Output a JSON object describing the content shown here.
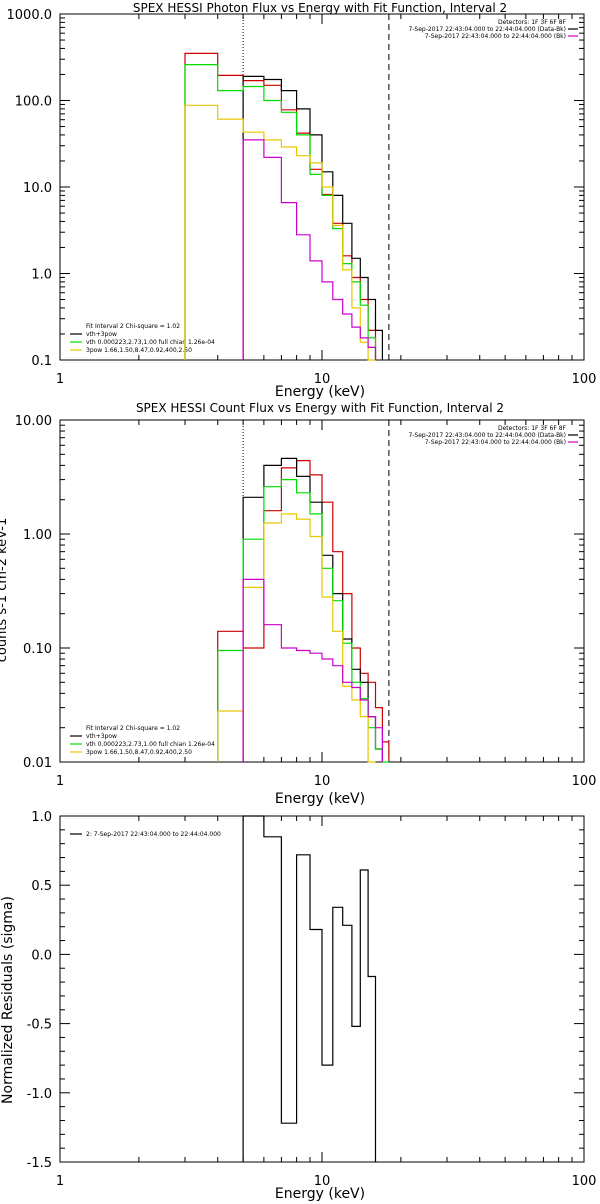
{
  "colors": {
    "total": "#000000",
    "vth": "#00dd00",
    "pow": "#e8c800",
    "data": "#cc0000",
    "bk": "#cc00cc",
    "axis": "#000000",
    "background": "#ffffff"
  },
  "chart_data": [
    {
      "type": "line",
      "title": "SPEX HESSI Photon Flux vs Energy with Fit Function, Interval 2",
      "xlabel": "Energy (keV)",
      "ylabel": "",
      "xscale": "log",
      "yscale": "log",
      "xlim": [
        1,
        100
      ],
      "ylim": [
        0.1,
        1000
      ],
      "x_tick_labels": [
        "1",
        "10",
        "100"
      ],
      "y_tick_labels": [
        "0.1",
        "1.0",
        "10.0",
        "100.0",
        "1000.0"
      ],
      "y_tick_values": [
        0.1,
        1,
        10,
        100,
        1000
      ],
      "energy_edges": [
        3.0,
        4.0,
        5.0,
        6.0,
        7.0,
        8.0,
        9.0,
        10.0,
        11.0,
        12.0,
        13.0,
        14.0,
        15.0,
        16.0,
        17.0,
        18.0
      ],
      "vlines": [
        {
          "x": 5.0,
          "style": "dotted"
        },
        {
          "x": 18.0,
          "style": "dashed"
        }
      ],
      "series": [
        {
          "key": "data",
          "colorKey": "data",
          "values": [
            350,
            195,
            170,
            150,
            78,
            42,
            16,
            8.2,
            3.8,
            1.6,
            0.9,
            0.5,
            0.22
          ]
        },
        {
          "key": "total",
          "colorKey": "total",
          "values": [
            null,
            null,
            190,
            175,
            130,
            80,
            40,
            15,
            8,
            3.8,
            1.5,
            0.9,
            0.5,
            0.22
          ]
        },
        {
          "key": "vth",
          "colorKey": "vth",
          "values": [
            260,
            130,
            145,
            100,
            73,
            40,
            14,
            8,
            3.3,
            1.3,
            0.8,
            0.43,
            0.18
          ]
        },
        {
          "key": "pow",
          "colorKey": "pow",
          "values": [
            88,
            61,
            43,
            35,
            29,
            23,
            19,
            10,
            3.6,
            1.1,
            0.4,
            0.16,
            0.1
          ]
        },
        {
          "key": "bk",
          "colorKey": "bk",
          "start_edge": 2,
          "values": [
            35,
            22,
            6.6,
            2.8,
            1.4,
            0.8,
            0.5,
            0.34,
            0.24,
            0.18,
            0.14
          ]
        }
      ],
      "legend": {
        "placement": "bottom-left",
        "entries": [
          {
            "text": "Fit Interval 2   Chi-square = 1.02",
            "colorKey": ""
          },
          {
            "text": "vth+3pow",
            "colorKey": "total"
          },
          {
            "text": "vth 0.000223,2.73,1.00  full chian 1.26e-04",
            "colorKey": "vth"
          },
          {
            "text": "3pow 1.66,1.50,8.47,0.92,400,2.50",
            "colorKey": "pow"
          }
        ]
      },
      "info": {
        "placement": "top-right",
        "lines": [
          {
            "text": "Detectors: 1F 3F 6F 8F",
            "colorKey": ""
          },
          {
            "text": "7-Sep-2017 22:43:04.000 to 22:44:04.000 (Data-Bk)",
            "colorKey": "total"
          },
          {
            "text": "7-Sep-2017 22:43:04.000 to 22:44:04.000 (Bk)",
            "colorKey": "bk"
          }
        ]
      }
    },
    {
      "type": "line",
      "title": "SPEX HESSI Count Flux vs Energy with Fit Function, Interval 2",
      "xlabel": "Energy (keV)",
      "ylabel": "counts s-1 cm-2 keV-1",
      "xscale": "log",
      "yscale": "log",
      "xlim": [
        1,
        100
      ],
      "ylim": [
        0.01,
        10
      ],
      "x_tick_labels": [
        "1",
        "10",
        "100"
      ],
      "y_tick_labels": [
        "0.01",
        "0.10",
        "1.00",
        "10.00"
      ],
      "y_tick_values": [
        0.01,
        0.1,
        1,
        10
      ],
      "energy_edges": [
        4.0,
        5.0,
        6.0,
        7.0,
        8.0,
        9.0,
        10.0,
        11.0,
        12.0,
        13.0,
        14.0,
        15.0,
        16.0,
        17.0,
        18.0,
        19.0
      ],
      "vlines": [
        {
          "x": 5.0,
          "style": "dotted"
        },
        {
          "x": 18.0,
          "style": "dashed"
        }
      ],
      "series": [
        {
          "key": "data",
          "colorKey": "data",
          "values": [
            0.14,
            0.1,
            1.6,
            3.8,
            4.4,
            3.3,
            1.9,
            0.7,
            0.3,
            0.1,
            0.06,
            0.05,
            0.03,
            0.015
          ]
        },
        {
          "key": "total",
          "colorKey": "total",
          "start_edge": 1,
          "values": [
            2.1,
            4.0,
            4.6,
            3.2,
            1.9,
            0.65,
            0.3,
            0.12,
            0.065,
            0.05,
            0.025,
            0.013
          ]
        },
        {
          "key": "vth",
          "colorKey": "vth",
          "values": [
            0.095,
            0.9,
            2.6,
            3.0,
            2.3,
            1.5,
            0.5,
            0.26,
            0.11,
            0.05,
            0.036,
            0.02,
            0.013,
            0.01
          ]
        },
        {
          "key": "pow",
          "colorKey": "pow",
          "values": [
            0.028,
            0.34,
            1.25,
            1.5,
            1.35,
            0.95,
            0.28,
            0.14,
            0.046,
            0.035,
            0.025,
            0.01
          ]
        },
        {
          "key": "bk",
          "colorKey": "bk",
          "start_edge": 1,
          "values": [
            0.4,
            0.16,
            0.1,
            0.095,
            0.09,
            0.08,
            0.07,
            0.05,
            0.045,
            0.035,
            0.025,
            0.02
          ]
        }
      ],
      "legend": {
        "placement": "bottom-left",
        "entries": [
          {
            "text": "Fit Interval 2   Chi-square = 1.02",
            "colorKey": ""
          },
          {
            "text": "vth+3pow",
            "colorKey": "total"
          },
          {
            "text": "vth 0.000223,2.73,1.00  full chian 1.26e-04",
            "colorKey": "vth"
          },
          {
            "text": "3pow 1.66,1.50,8.47,0.92,400,2.50",
            "colorKey": "pow"
          }
        ]
      },
      "info": {
        "placement": "top-right",
        "lines": [
          {
            "text": "Detectors: 1F 3F 6F 8F",
            "colorKey": ""
          },
          {
            "text": "7-Sep-2017 22:43:04.000 to 22:44:04.000 (Data-Bk)",
            "colorKey": "total"
          },
          {
            "text": "7-Sep-2017 22:43:04.000 to 22:44:04.000 (Bk)",
            "colorKey": "bk"
          }
        ]
      }
    },
    {
      "type": "line",
      "title": "",
      "xlabel": "Energy (keV)",
      "ylabel": "Normalized Residuals (sigma)",
      "xscale": "log",
      "yscale": "linear",
      "xlim": [
        1,
        100
      ],
      "ylim": [
        -1.5,
        1.0
      ],
      "x_tick_labels": [
        "1",
        "10",
        "100"
      ],
      "y_tick_labels": [
        "-1.5",
        "-1.0",
        "-0.5",
        "0.0",
        "0.5",
        "1.0"
      ],
      "y_tick_values": [
        -1.5,
        -1.0,
        -0.5,
        0.0,
        0.5,
        1.0
      ],
      "energy_edges": [
        5.0,
        6.0,
        7.0,
        8.0,
        9.0,
        10.0,
        11.0,
        12.0,
        13.0,
        14.0,
        15.0,
        16.0,
        17.0,
        18.0
      ],
      "vlines": [],
      "series": [
        {
          "key": "resid",
          "colorKey": "total",
          "drop_to_bottom": true,
          "values": [
            1.0,
            0.85,
            -1.22,
            0.72,
            0.18,
            -0.8,
            0.34,
            0.21,
            -0.52,
            0.61,
            -0.16
          ]
        }
      ],
      "legend": {
        "placement": "top-left",
        "entries": [
          {
            "text": "2:  7-Sep-2017 22:43:04.000 to 22:44:04.000",
            "colorKey": "total"
          }
        ]
      }
    }
  ]
}
